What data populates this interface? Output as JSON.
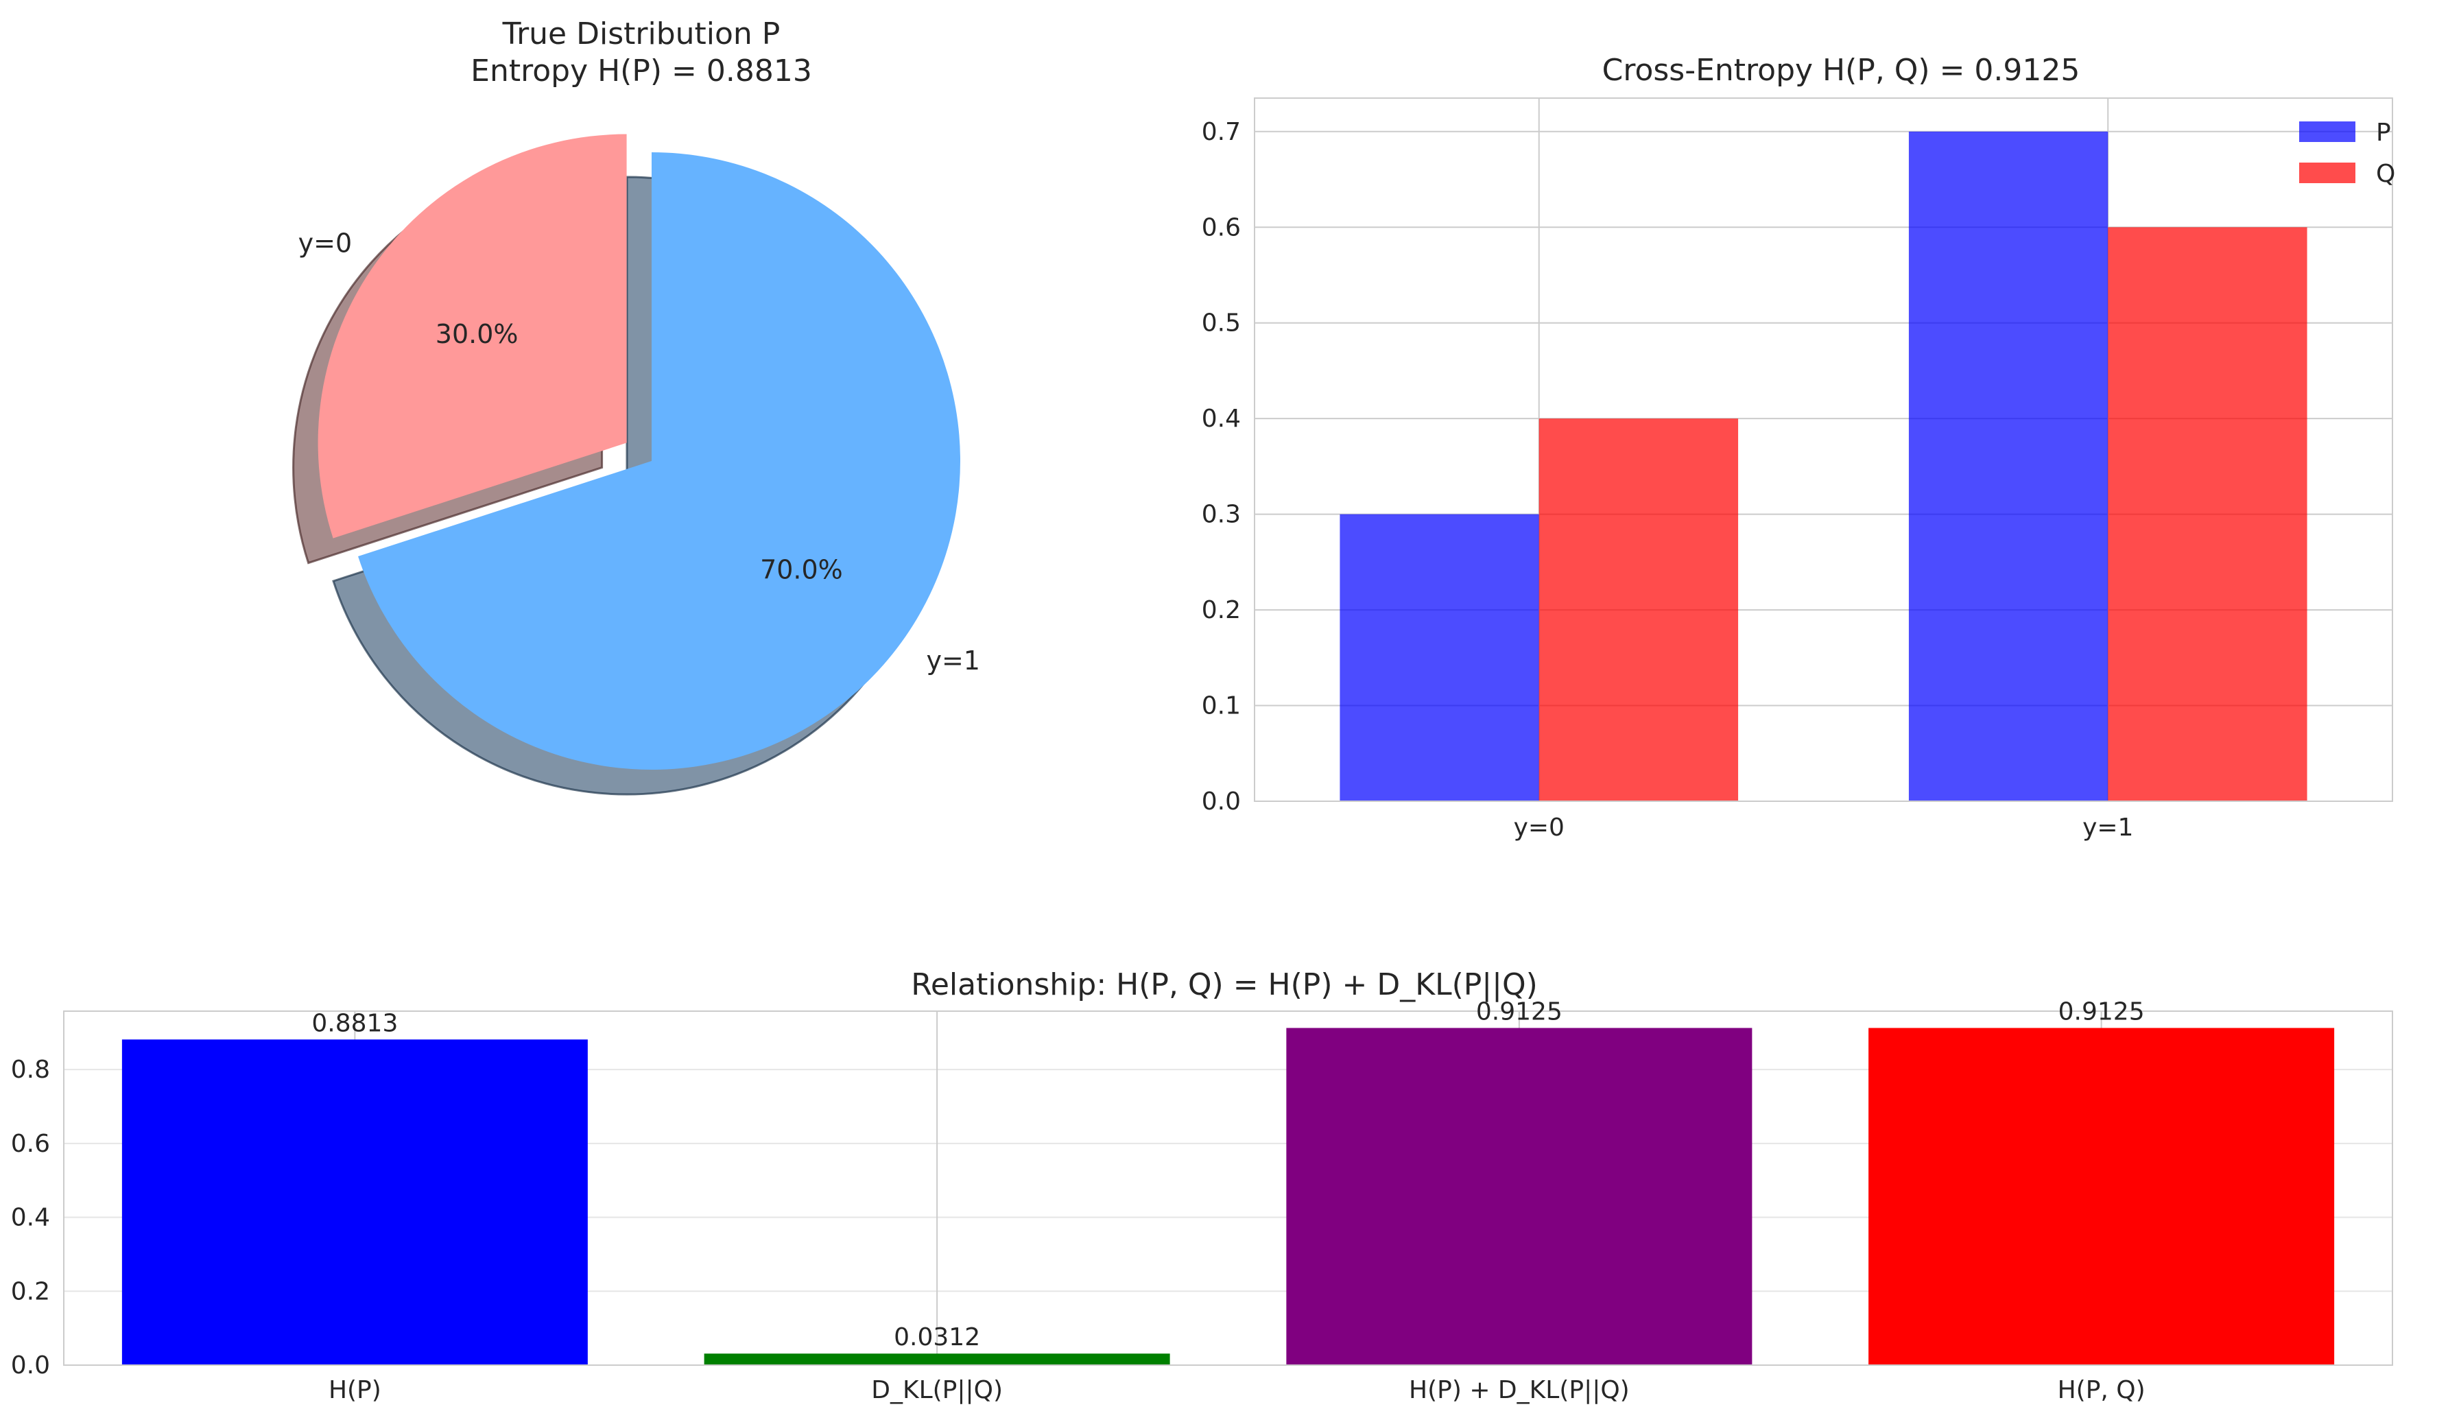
{
  "chart_data": [
    {
      "type": "pie",
      "title": "True Distribution P",
      "subtitle": "Entropy H(P) = 0.8813",
      "labels": [
        "y=0",
        "y=1"
      ],
      "values": [
        0.3,
        0.7
      ],
      "percent_labels": [
        "30.0%",
        "70.0%"
      ],
      "colors": [
        "#ff9999",
        "#66b3ff"
      ],
      "explode": [
        0.1,
        0
      ],
      "shadow": true,
      "start_angle_deg": 90
    },
    {
      "type": "bar",
      "title": "Cross-Entropy H(P, Q) = 0.9125",
      "categories": [
        "y=0",
        "y=1"
      ],
      "series": [
        {
          "name": "P",
          "values": [
            0.3,
            0.7
          ],
          "color": "#0000ff"
        },
        {
          "name": "Q",
          "values": [
            0.4,
            0.6
          ],
          "color": "#ff0000"
        }
      ],
      "ylim": [
        0,
        0.735
      ],
      "yticks": [
        0.0,
        0.1,
        0.2,
        0.3,
        0.4,
        0.5,
        0.6,
        0.7
      ],
      "ytick_labels": [
        "0.0",
        "0.1",
        "0.2",
        "0.3",
        "0.4",
        "0.5",
        "0.6",
        "0.7"
      ],
      "grid": true,
      "legend": "top-right"
    },
    {
      "type": "bar",
      "title": "Relationship: H(P, Q) = H(P) + D_KL(P||Q)",
      "categories": [
        "H(P)",
        "D_KL(P||Q)",
        "H(P) + D_KL(P||Q)",
        "H(P, Q)"
      ],
      "values": [
        0.8813,
        0.0312,
        0.9125,
        0.9125
      ],
      "value_labels": [
        "0.8813",
        "0.0312",
        "0.9125",
        "0.9125"
      ],
      "colors": [
        "#0000ff",
        "#008000",
        "#800080",
        "#ff0000"
      ],
      "ylim": [
        0,
        0.958
      ],
      "yticks": [
        0.0,
        0.2,
        0.4,
        0.6,
        0.8
      ],
      "ytick_labels": [
        "0.0",
        "0.2",
        "0.4",
        "0.6",
        "0.8"
      ],
      "grid": true
    }
  ]
}
